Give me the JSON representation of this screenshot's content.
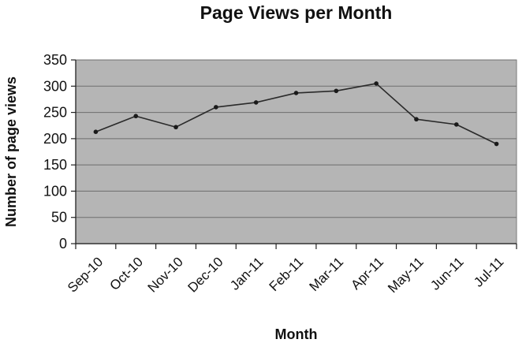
{
  "chart_data": {
    "type": "line",
    "title": "Page Views per Month",
    "xlabel": "Month",
    "ylabel": "Number of page views",
    "categories": [
      "Sep-10",
      "Oct-10",
      "Nov-10",
      "Dec-10",
      "Jan-11",
      "Feb-11",
      "Mar-11",
      "Apr-11",
      "May-11",
      "Jun-11",
      "Jul-11"
    ],
    "x_tick_labels": [
      "Sep-10",
      "Oct-10",
      "Nov-10",
      "Dec-10",
      "Jan-11",
      "Feb-11",
      "Mar-11",
      "Apr-11",
      "May-11",
      "Jun-11",
      "Jul-11"
    ],
    "x_values": [
      "2010-09-15",
      "2010-10-15",
      "2010-11-15",
      "2010-12-15",
      "2011-01-15",
      "2011-02-15",
      "2011-03-15",
      "2011-04-15",
      "2011-05-15",
      "2011-06-15",
      "2011-07-15"
    ],
    "values": [
      213,
      243,
      222,
      260,
      269,
      287,
      291,
      305,
      237,
      227,
      190
    ],
    "ylim": [
      0,
      350
    ],
    "yticks": [
      0,
      50,
      100,
      150,
      200,
      250,
      300,
      350
    ],
    "grid": true,
    "legend": "none",
    "colors": {
      "plot_background": "#b5b5b5",
      "gridline": "#6e6e6e",
      "axis": "#222222",
      "line": "#2a2a2a",
      "marker": "#1a1a1a",
      "text": "#111111"
    }
  }
}
